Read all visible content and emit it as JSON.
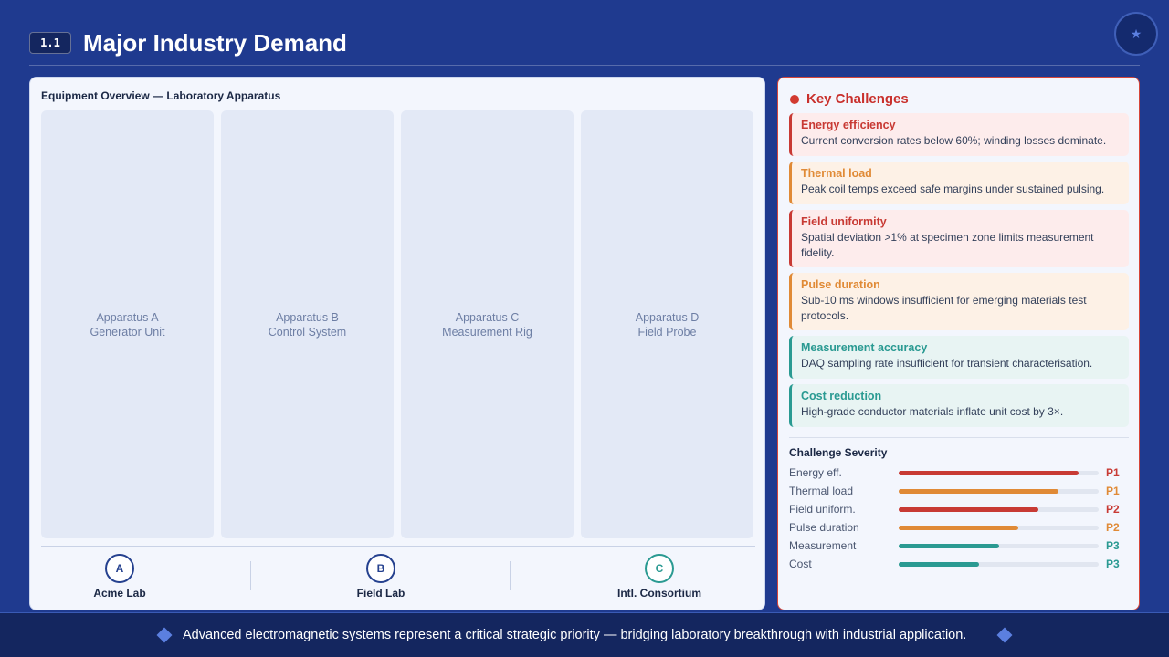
{
  "header": {
    "section_number": "1.1",
    "title": "Major Industry Demand",
    "badge_icon": "star-icon",
    "badge_glyph": "★"
  },
  "equipment": {
    "title": "Equipment Overview — Laboratory Apparatus",
    "apparatus": [
      {
        "name": "Apparatus A",
        "desc": "Generator Unit"
      },
      {
        "name": "Apparatus B",
        "desc": "Control System"
      },
      {
        "name": "Apparatus C",
        "desc": "Measurement Rig"
      },
      {
        "name": "Apparatus D",
        "desc": "Field Probe"
      }
    ],
    "labs": [
      {
        "letter": "A",
        "name": "Acme Lab"
      },
      {
        "letter": "B",
        "name": "Field Lab"
      },
      {
        "letter": "C",
        "name": "Intl. Consortium"
      }
    ]
  },
  "challenges": {
    "title": "Key Challenges",
    "items": [
      {
        "title": "Energy efficiency",
        "desc": "Current conversion rates below 60%; winding losses dominate.",
        "tone": "red"
      },
      {
        "title": "Thermal load",
        "desc": "Peak coil temps exceed safe margins under sustained pulsing.",
        "tone": "orange"
      },
      {
        "title": "Field uniformity",
        "desc": "Spatial deviation >1% at specimen zone limits measurement fidelity.",
        "tone": "red"
      },
      {
        "title": "Pulse duration",
        "desc": "Sub-10 ms windows insufficient for emerging materials test protocols.",
        "tone": "orange"
      },
      {
        "title": "Measurement accuracy",
        "desc": "DAQ sampling rate insufficient for transient characterisation.",
        "tone": "teal"
      },
      {
        "title": "Cost reduction",
        "desc": "High-grade conductor materials inflate unit cost by 3×.",
        "tone": "teal"
      }
    ]
  },
  "severity": {
    "title": "Challenge Severity",
    "colors": {
      "red": "#c83a34",
      "orange": "#e08a36",
      "teal": "#2a9a92"
    },
    "rows": [
      {
        "label": "Energy eff.",
        "level": 0.9,
        "priority": "P1",
        "tone": "red"
      },
      {
        "label": "Thermal load",
        "level": 0.8,
        "priority": "P1",
        "tone": "orange"
      },
      {
        "label": "Field uniform.",
        "level": 0.7,
        "priority": "P2",
        "tone": "red"
      },
      {
        "label": "Pulse duration",
        "level": 0.6,
        "priority": "P2",
        "tone": "orange"
      },
      {
        "label": "Measurement",
        "level": 0.5,
        "priority": "P3",
        "tone": "teal"
      },
      {
        "label": "Cost",
        "level": 0.4,
        "priority": "P3",
        "tone": "teal"
      }
    ]
  },
  "footer": {
    "text": "Advanced electromagnetic systems represent a critical strategic priority — bridging laboratory breakthrough with industrial application."
  }
}
